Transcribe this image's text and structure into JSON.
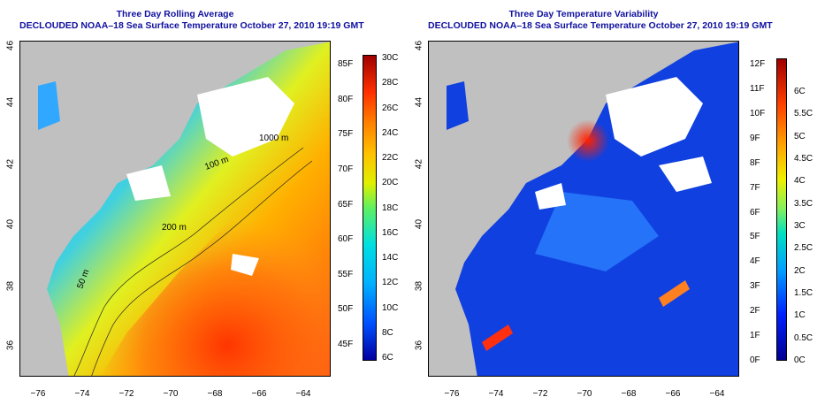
{
  "left_panel": {
    "title_line1": "Three Day Rolling Average",
    "title_line2": "DECLOUDED NOAA–18 Sea Surface Temperature October 27, 2010 19:19 GMT",
    "contour_labels": [
      "1000 m",
      "200 m",
      "50 m",
      "100 m"
    ],
    "colorbar_f_labels": [
      "85F",
      "80F",
      "75F",
      "70F",
      "65F",
      "60F",
      "55F",
      "50F",
      "45F"
    ],
    "colorbar_c_labels": [
      "30C",
      "28C",
      "26C",
      "24C",
      "22C",
      "20C",
      "18C",
      "16C",
      "14C",
      "12C",
      "10C",
      "8C",
      "6C"
    ]
  },
  "right_panel": {
    "title_line1": "Three Day Temperature Variability",
    "title_line2": "DECLOUDED NOAA–18 Sea Surface Temperature October 27, 2010 19:19 GMT",
    "colorbar_f_labels": [
      "12F",
      "11F",
      "10F",
      "9F",
      "8F",
      "7F",
      "6F",
      "5F",
      "4F",
      "3F",
      "2F",
      "1F",
      "0F"
    ],
    "colorbar_c_labels": [
      "6C",
      "5.5C",
      "5C",
      "4.5C",
      "4C",
      "3.5C",
      "3C",
      "2.5C",
      "2C",
      "1.5C",
      "1C",
      "0.5C",
      "0C"
    ]
  },
  "axes": {
    "lon_labels": [
      "−76",
      "−74",
      "−72",
      "−70",
      "−68",
      "−66",
      "−64"
    ],
    "lat_labels": [
      "46",
      "44",
      "42",
      "40",
      "38",
      "36"
    ]
  },
  "colors": {
    "land": "#c0c0c0",
    "title": "#1010a0",
    "cloud": "#ffffff"
  }
}
